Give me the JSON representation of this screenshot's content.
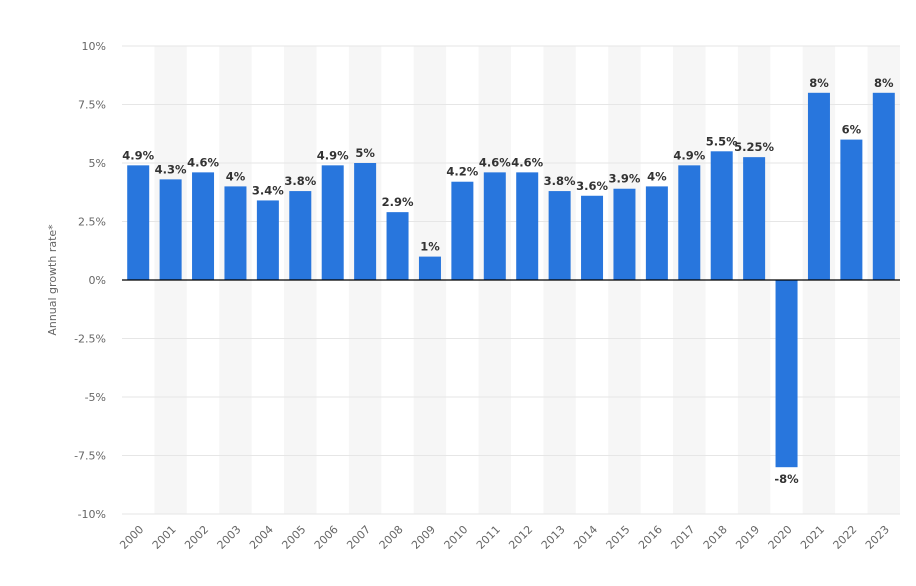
{
  "chart_data": {
    "type": "bar",
    "title": "",
    "xlabel": "",
    "ylabel": "Annual growth rate*",
    "ylim": [
      -10,
      10
    ],
    "yticks": [
      10,
      7.5,
      5,
      2.5,
      0,
      -2.5,
      -5,
      -7.5,
      -10
    ],
    "ytick_labels": [
      "10%",
      "7.5%",
      "5%",
      "2.5%",
      "0%",
      "-2.5%",
      "-5%",
      "-7.5%",
      "-10%"
    ],
    "grid": true,
    "categories": [
      "2000",
      "2001",
      "2002",
      "2003",
      "2004",
      "2005",
      "2006",
      "2007",
      "2008",
      "2009",
      "2010",
      "2011",
      "2012",
      "2013",
      "2014",
      "2015",
      "2016",
      "2017",
      "2018",
      "2019",
      "2020",
      "2021",
      "2022",
      "2023"
    ],
    "values": [
      4.9,
      4.3,
      4.6,
      4,
      3.4,
      3.8,
      4.9,
      5,
      2.9,
      1,
      4.2,
      4.6,
      4.6,
      3.8,
      3.6,
      3.9,
      4,
      4.9,
      5.5,
      5.25,
      -8,
      8,
      6,
      8
    ],
    "data_labels": [
      "4.9%",
      "4.3%",
      "4.6%",
      "4%",
      "3.4%",
      "3.8%",
      "4.9%",
      "5%",
      "2.9%",
      "1%",
      "4.2%",
      "4.6%",
      "4.6%",
      "3.8%",
      "3.6%",
      "3.9%",
      "4%",
      "4.9%",
      "5.5%",
      "5.25%",
      "-8%",
      "8%",
      "6%",
      "8%"
    ],
    "colors": {
      "bar": "#2876dd",
      "band": "#f6f6f6",
      "grid": "#e6e6e6",
      "zero_line": "#000000"
    }
  }
}
